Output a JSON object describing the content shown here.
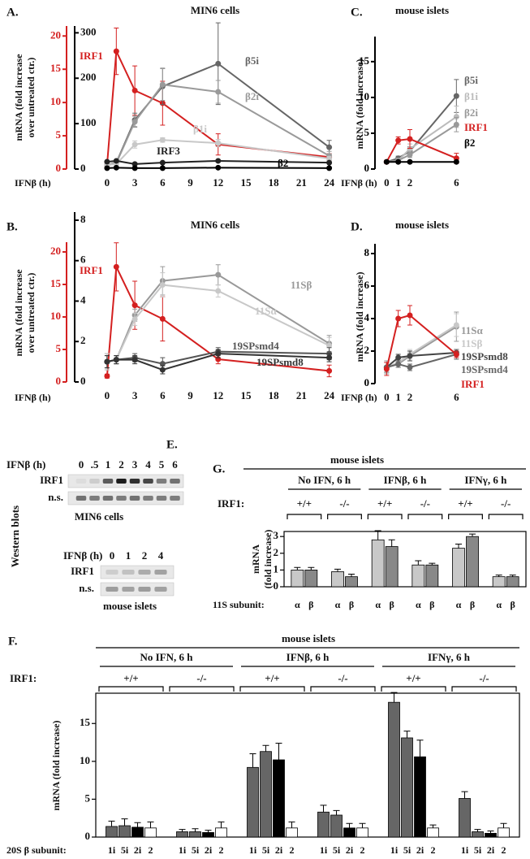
{
  "chart_data": [
    {
      "type": "line",
      "panel": "A.",
      "title": "MIN6 cells",
      "ylabel": [
        "mRNA (fold increase",
        "over untreated ctr.)"
      ],
      "xlabel": "IFNβ (h)",
      "x": [
        0,
        1,
        3,
        6,
        12,
        24
      ],
      "xlim": [
        -3.5,
        25
      ],
      "xticks": [
        0,
        3,
        6,
        9,
        12,
        15,
        18,
        21,
        24
      ],
      "ylim": [
        0,
        21.5
      ],
      "yticks": [
        0,
        5,
        10,
        15,
        20
      ],
      "ycolor": "#d42020",
      "y2lim": [
        0,
        315
      ],
      "y2ticks": [
        0,
        100,
        200,
        300
      ],
      "series": [
        {
          "name": "IRF1",
          "color": "#d42020",
          "values": [
            0.6,
            17.7,
            11.8,
            9.9,
            3.7,
            1.8
          ],
          "errors": [
            0.3,
            3.5,
            3.7,
            3.3,
            1.6,
            0.5
          ]
        },
        {
          "name": "β5i",
          "color": "#666666",
          "axis": "y2",
          "values": [
            9,
            14,
            108,
            182,
            232,
            48
          ],
          "errors": [
            3,
            3,
            15,
            40,
            90,
            15
          ]
        },
        {
          "name": "β2i",
          "color": "#9a9a9a",
          "axis": "y2",
          "values": [
            9,
            13,
            104,
            186,
            170,
            29
          ],
          "errors": [
            3,
            3,
            12,
            35,
            25,
            10
          ]
        },
        {
          "name": "β1i",
          "color": "#c8c8c8",
          "axis": "y2",
          "values": [
            9,
            11,
            54,
            64,
            57,
            23
          ],
          "errors": [
            2,
            2,
            8,
            5,
            8,
            5
          ]
        },
        {
          "name": "IRF3",
          "color": "#222222",
          "axis": "y2",
          "values": [
            16,
            18,
            11,
            14,
            18,
            14
          ],
          "errors": [
            2,
            2,
            2,
            2,
            2,
            2
          ]
        },
        {
          "name": "β2",
          "color": "#000000",
          "axis": "y2",
          "values": [
            2,
            3,
            2,
            2,
            3,
            2
          ],
          "errors": [
            1,
            1,
            1,
            1,
            1,
            1
          ]
        }
      ]
    },
    {
      "type": "line",
      "panel": "B.",
      "title": "MIN6 cells",
      "ylabel": [
        "mRNA (fold increase",
        "over untreated ctr.)"
      ],
      "xlabel": "IFNβ (h)",
      "x": [
        0,
        1,
        3,
        6,
        12,
        24
      ],
      "xlim": [
        -3.5,
        25
      ],
      "xticks": [
        0,
        3,
        6,
        9,
        12,
        15,
        18,
        21,
        24
      ],
      "ylim": [
        0,
        21.5
      ],
      "yticks": [
        0,
        5,
        10,
        15,
        20
      ],
      "ycolor": "#d42020",
      "y2lim": [
        0,
        8.4
      ],
      "y2ticks": [
        0,
        2,
        4,
        6,
        8
      ],
      "series": [
        {
          "name": "IRF1",
          "color": "#d42020",
          "values": [
            0.9,
            17.7,
            11.8,
            9.7,
            3.5,
            1.7
          ],
          "errors": [
            0.3,
            3.7,
            3.7,
            3.4,
            0.7,
            0.9
          ]
        },
        {
          "name": "11Sβ",
          "color": "#999999",
          "axis": "y2",
          "values": [
            1.0,
            1.1,
            3.3,
            5.0,
            5.3,
            1.9
          ],
          "errors": [
            0.4,
            0.2,
            0.3,
            0.7,
            0.5,
            0.4
          ]
        },
        {
          "name": "11Sα",
          "color": "#c8c8c8",
          "axis": "y2",
          "values": [
            1.0,
            1.1,
            3.1,
            4.8,
            4.5,
            1.8
          ],
          "errors": [
            0.4,
            0.2,
            0.3,
            0.6,
            0.3,
            0.4
          ]
        },
        {
          "name": "19SPsmd4",
          "color": "#555555",
          "axis": "y2",
          "values": [
            1.0,
            1.1,
            1.2,
            0.9,
            1.5,
            1.4
          ],
          "errors": [
            0.3,
            0.2,
            0.2,
            0.3,
            0.2,
            0.3
          ]
        },
        {
          "name": "19SPsmd8",
          "color": "#333333",
          "axis": "y2",
          "values": [
            1.0,
            1.1,
            1.1,
            0.6,
            1.4,
            1.2
          ],
          "errors": [
            0.3,
            0.2,
            0.2,
            0.2,
            0.2,
            0.2
          ]
        }
      ]
    },
    {
      "type": "line",
      "panel": "C.",
      "title": "mouse islets",
      "ylabel": "mRNA (fold increase)",
      "xlabel": "IFNβ (h)",
      "x": [
        0,
        1,
        2,
        6
      ],
      "xlim": [
        -1,
        6.5
      ],
      "xticks": [
        0,
        1,
        2,
        6
      ],
      "ylim": [
        0,
        18.5
      ],
      "yticks": [
        0,
        5,
        10,
        15
      ],
      "series": [
        {
          "name": "β5i",
          "color": "#666666",
          "values": [
            1.0,
            1.5,
            2.5,
            10.2
          ],
          "errors": [
            0.2,
            0.3,
            0.6,
            2.3
          ]
        },
        {
          "name": "β1i",
          "color": "#bbbbbb",
          "values": [
            1.0,
            1.2,
            2.8,
            7.3
          ],
          "errors": [
            0.2,
            0.3,
            0.7,
            1.5
          ]
        },
        {
          "name": "β2i",
          "color": "#999999",
          "values": [
            1.0,
            1.2,
            2.0,
            6.2
          ],
          "errors": [
            0.2,
            0.2,
            0.4,
            1.0
          ]
        },
        {
          "name": "IRF1",
          "color": "#d42020",
          "values": [
            1.0,
            4.0,
            4.2,
            1.5
          ],
          "errors": [
            0.2,
            0.5,
            1.3,
            0.7
          ]
        },
        {
          "name": "β2",
          "color": "#000000",
          "values": [
            1.0,
            1.0,
            1.0,
            1.0
          ],
          "errors": [
            0.1,
            0.1,
            0.1,
            0.1
          ]
        }
      ]
    },
    {
      "type": "line",
      "panel": "D.",
      "title": "mouse islets",
      "ylabel": "mRNA (fold increase)",
      "xlabel": "IFNβ (h)",
      "x": [
        0,
        1,
        2,
        6
      ],
      "xlim": [
        -1,
        6.5
      ],
      "xticks": [
        0,
        1,
        2,
        6
      ],
      "ylim": [
        0,
        8.6
      ],
      "yticks": [
        0,
        2,
        4,
        6,
        8
      ],
      "series": [
        {
          "name": "11Sα",
          "color": "#999999",
          "values": [
            1.0,
            1.2,
            1.7,
            3.5
          ],
          "errors": [
            0.4,
            0.2,
            0.3,
            0.9
          ]
        },
        {
          "name": "11Sβ",
          "color": "#c8c8c8",
          "values": [
            1.0,
            1.3,
            1.8,
            3.6
          ],
          "errors": [
            0.3,
            0.2,
            0.3,
            0.7
          ]
        },
        {
          "name": "19SPsmd8",
          "color": "#444444",
          "values": [
            1.0,
            1.6,
            1.7,
            1.9
          ],
          "errors": [
            0.3,
            0.2,
            0.3,
            0.2
          ]
        },
        {
          "name": "19SPsmd4",
          "color": "#666666",
          "values": [
            1.0,
            1.2,
            1.0,
            1.8
          ],
          "errors": [
            0.3,
            0.2,
            0.2,
            0.3
          ]
        },
        {
          "name": "IRF1",
          "color": "#d42020",
          "values": [
            0.9,
            4.0,
            4.2,
            1.8
          ],
          "errors": [
            0.4,
            0.5,
            0.6,
            0.2
          ]
        }
      ]
    },
    {
      "type": "bar",
      "panel": "G.",
      "title": "mouse islets",
      "groups": [
        "No IFN, 6 h",
        "IFNβ, 6 h",
        "IFNγ, 6 h"
      ],
      "category_title": "IRF1:",
      "categories": [
        "+/+",
        "-/-",
        "+/+",
        "-/-",
        "+/+",
        "-/-"
      ],
      "xlabel": "11S subunit:",
      "ylabel": [
        "mRNA",
        "(fold increase)"
      ],
      "ylim": [
        0,
        3.3
      ],
      "yticks": [
        0,
        1,
        2,
        3
      ],
      "series": [
        {
          "name": "α",
          "color": "#c8c8c8",
          "values": [
            1.0,
            0.9,
            2.8,
            1.3,
            2.3,
            0.6
          ],
          "errors": [
            0.15,
            0.15,
            0.55,
            0.25,
            0.25,
            0.1
          ]
        },
        {
          "name": "β",
          "color": "#888888",
          "values": [
            1.0,
            0.6,
            2.4,
            1.3,
            3.0,
            0.6
          ],
          "errors": [
            0.15,
            0.15,
            0.4,
            0.1,
            0.15,
            0.1
          ]
        }
      ]
    },
    {
      "type": "bar",
      "panel": "F.",
      "title": "mouse islets",
      "groups": [
        "No IFN, 6 h",
        "IFNβ, 6 h",
        "IFNγ, 6 h"
      ],
      "category_title": "IRF1:",
      "categories": [
        "+/+",
        "-/-",
        "+/+",
        "-/-",
        "+/+",
        "-/-"
      ],
      "xlabel": "20S β subunit:",
      "ylabel": "mRNA (fold increase)",
      "ylim": [
        0,
        19
      ],
      "yticks": [
        0,
        5,
        10,
        15
      ],
      "series": [
        {
          "name": "1i",
          "color": "#666666",
          "values": [
            1.4,
            0.7,
            9.2,
            3.3,
            17.8,
            5.1
          ],
          "errors": [
            0.7,
            0.3,
            1.8,
            0.9,
            1.3,
            0.9
          ]
        },
        {
          "name": "5i",
          "color": "#666666",
          "values": [
            1.5,
            0.7,
            11.3,
            2.9,
            13.1,
            0.7
          ],
          "errors": [
            0.9,
            0.4,
            0.8,
            0.6,
            0.9,
            0.3
          ]
        },
        {
          "name": "2i",
          "color": "#000000",
          "values": [
            1.3,
            0.6,
            10.2,
            1.2,
            10.6,
            0.5
          ],
          "errors": [
            0.6,
            0.3,
            2.2,
            0.6,
            2.2,
            0.3
          ]
        },
        {
          "name": "2",
          "color": "#ffffff",
          "values": [
            1.2,
            1.2,
            1.2,
            1.2,
            1.2,
            1.2
          ],
          "errors": [
            0.8,
            0.8,
            0.8,
            0.6,
            0.4,
            0.6
          ]
        }
      ]
    }
  ],
  "western_blots": {
    "panel": "E.",
    "side_label": "Western blots",
    "blots": [
      {
        "time_label": "IFNβ (h)",
        "times": [
          "0",
          ".5",
          "1",
          "2",
          "3",
          "4",
          "5",
          "6"
        ],
        "rows": [
          "IRF1",
          "n.s."
        ],
        "caption": "MIN6 cells"
      },
      {
        "time_label": "IFNβ (h)",
        "times": [
          "0",
          "1",
          "2",
          "4"
        ],
        "rows": [
          "IRF1",
          "n.s."
        ],
        "caption": "mouse islets"
      }
    ]
  }
}
